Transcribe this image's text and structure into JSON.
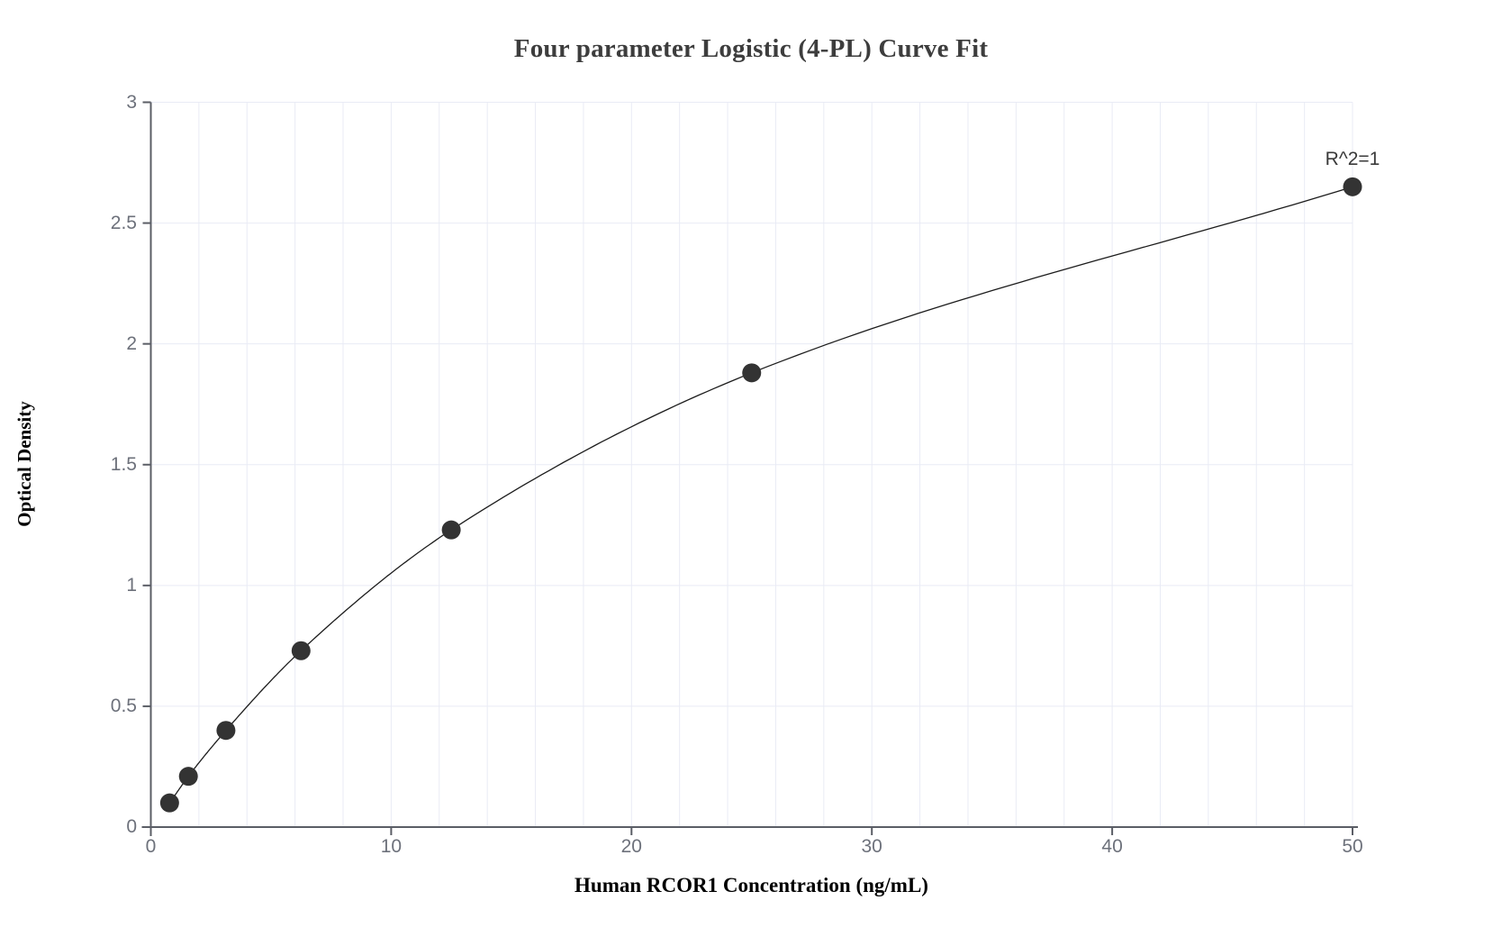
{
  "chart": {
    "title": "Four parameter Logistic (4-PL) Curve Fit",
    "annotation": {
      "text": "R^2=1"
    },
    "x_axis": {
      "label": "Human RCOR1 Concentration (ng/mL)",
      "tick_values": [
        0,
        10,
        20,
        30,
        40,
        50
      ],
      "tick_labels": [
        "0",
        "10",
        "20",
        "30",
        "40",
        "50"
      ],
      "min": 0,
      "max": 50,
      "grid_step": 2
    },
    "y_axis": {
      "label": "Optical Density",
      "tick_values": [
        0,
        0.5,
        1,
        1.5,
        2,
        2.5,
        3
      ],
      "tick_labels": [
        "0",
        "0.5",
        "1",
        "1.5",
        "2",
        "2.5",
        "3"
      ],
      "min": 0,
      "max": 3,
      "grid_step": 0.5
    },
    "colors": {
      "background": "#ffffff",
      "title": "#3d3d3d",
      "axis": "#5b5e66",
      "grid": "#e9ebf5",
      "tick_label": "#6d717b",
      "point": "#333333",
      "curve": "#1c1c1c",
      "annotation_text": "#3a3a3a"
    }
  },
  "chart_data": {
    "type": "scatter",
    "title": "Four parameter Logistic (4-PL) Curve Fit",
    "xlabel": "Human RCOR1 Concentration (ng/mL)",
    "ylabel": "Optical Density",
    "x": [
      0.781,
      1.563,
      3.125,
      6.25,
      12.5,
      25,
      50
    ],
    "y": [
      0.1,
      0.21,
      0.4,
      0.73,
      1.23,
      1.88,
      2.65
    ],
    "fit_type": "4-parameter logistic curve through all points",
    "annotation": "R^2=1",
    "xlim": [
      0,
      50
    ],
    "ylim": [
      0,
      3
    ],
    "x_gridline_step": 2,
    "y_gridline_step": 0.5,
    "grid": true,
    "legend": false
  }
}
